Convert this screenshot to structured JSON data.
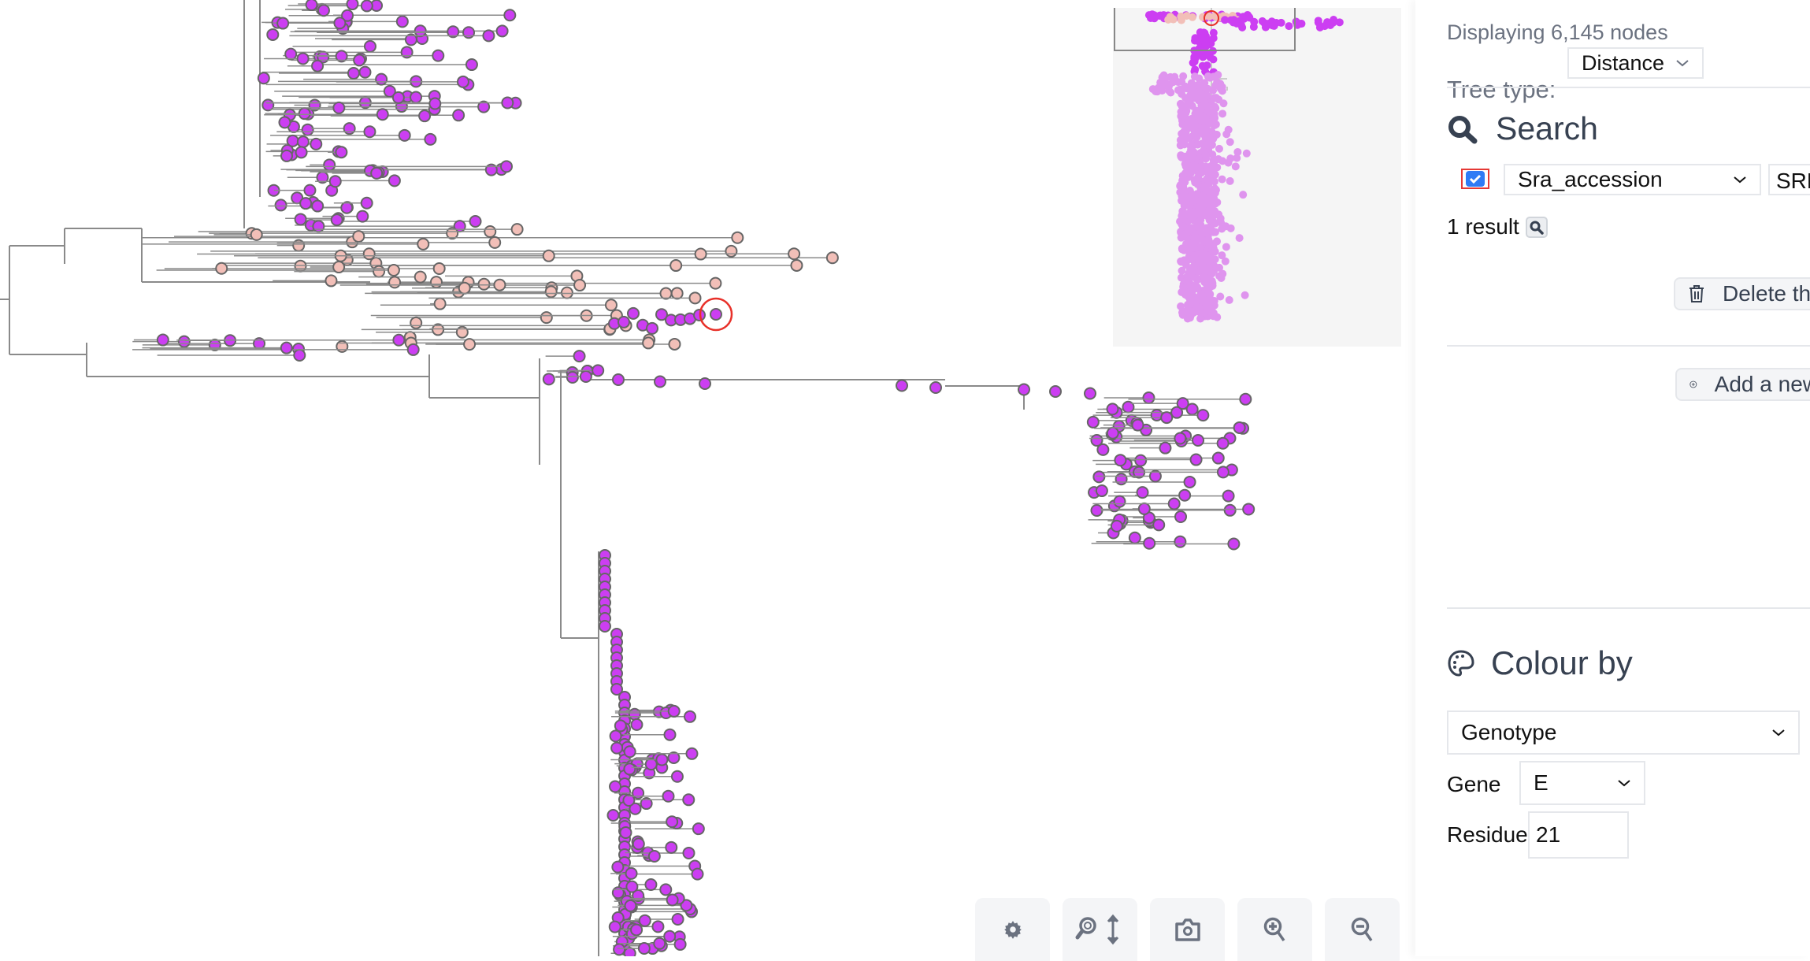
{
  "tree": {
    "colors": {
      "purple": "#cc3ef2",
      "pink": "#f2bfb8",
      "branch": "#8a8a8a",
      "highlight": "#e8312a",
      "minimap_purple_light": "#df94ee"
    }
  },
  "toolbar": {
    "settings_icon": "gear-icon",
    "zoom_vertical_icon": "magnify-vertical-icon",
    "screenshot_icon": "camera-icon",
    "zoom_in_icon": "zoom-in-icon",
    "zoom_out_icon": "zoom-out-icon"
  },
  "panel": {
    "node_count": "Displaying 6,145 nodes",
    "tree_type_label": "Tree type:",
    "tree_type_value": "Distance",
    "search": {
      "heading": "Search",
      "enabled": true,
      "field": "Sra_accession",
      "value": "SRR",
      "result_count": "1 result",
      "delete_label": "Delete th",
      "add_label": "Add a new"
    },
    "colour": {
      "heading": "Colour by",
      "method": "Genotype",
      "gene_label": "Gene",
      "gene_value": "E",
      "residue_label": "Residue",
      "residue_value": "21"
    }
  }
}
